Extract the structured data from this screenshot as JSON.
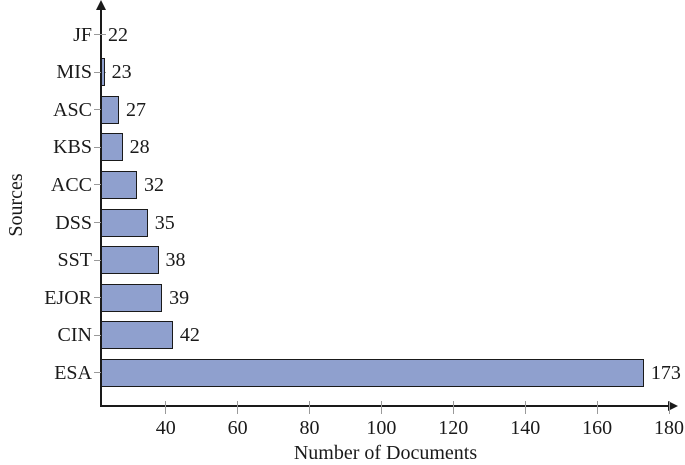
{
  "chart_data": {
    "type": "bar",
    "orientation": "horizontal",
    "title": "",
    "xlabel": "Number of Documents",
    "ylabel": "Sources",
    "categories": [
      "JF",
      "MIS",
      "ASC",
      "KBS",
      "ACC",
      "DSS",
      "SST",
      "EJOR",
      "CIN",
      "ESA"
    ],
    "values": [
      22,
      23,
      27,
      28,
      32,
      35,
      38,
      39,
      42,
      173
    ],
    "x_ticks": [
      40,
      60,
      80,
      100,
      120,
      140,
      160,
      180
    ],
    "xlim": [
      22,
      180
    ],
    "grid": "off",
    "legend": "none",
    "data_labels": true,
    "bar_fill_color": "#8FA0CE",
    "bar_border_color": "#1a1a1a",
    "axis_color": "#1a1a1a",
    "tick_color": "#9a9a9a",
    "text_color": "#1a1a1a"
  }
}
